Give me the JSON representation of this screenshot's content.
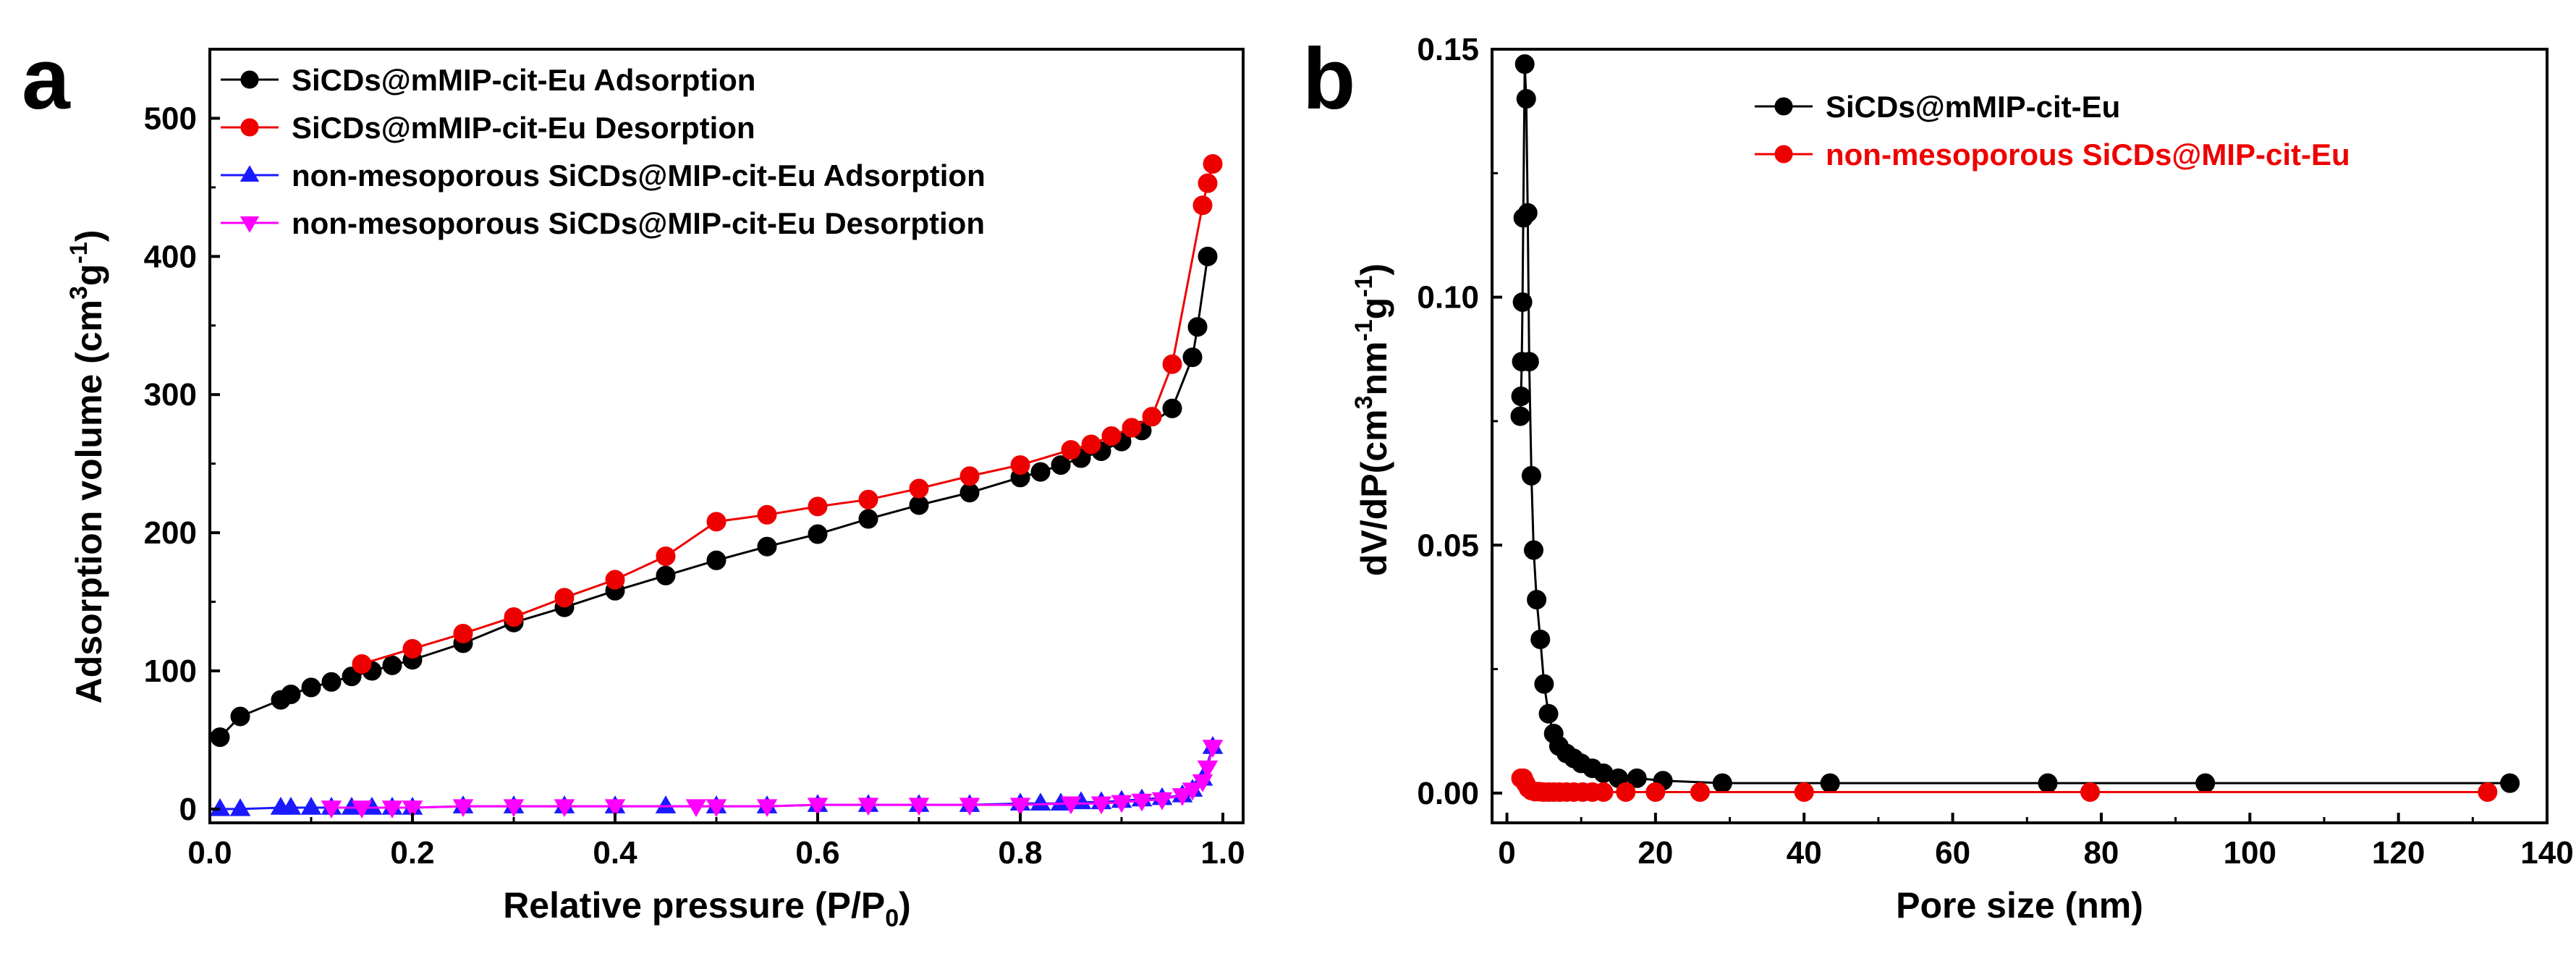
{
  "figure": {
    "background": "#ffffff",
    "axis_color": "#000000"
  },
  "chart_data": [
    {
      "id": "a",
      "type": "line",
      "panel_label": "a",
      "xlabel": "Relative pressure (P/P0)",
      "xlabel_main": "Relative pressure (P/P",
      "xlabel_sub": "0",
      "xlabel_tail": ")",
      "ylabel": "Adsorption volume (cm3g-1)",
      "ylabel_main": "Adsorption volume (cm",
      "ylabel_sup1": "3",
      "ylabel_mid": "g",
      "ylabel_sup2": "-1",
      "ylabel_tail": ")",
      "xlim": [
        0.0,
        1.02
      ],
      "ylim": [
        -10,
        550
      ],
      "xticks": [
        0.0,
        0.2,
        0.4,
        0.6,
        0.8,
        1.0
      ],
      "xtick_labels": [
        "0.0",
        "0.2",
        "0.4",
        "0.6",
        "0.8",
        "1.0"
      ],
      "yticks": [
        0,
        100,
        200,
        300,
        400,
        500
      ],
      "ytick_labels": [
        "0",
        "100",
        "200",
        "300",
        "400",
        "500"
      ],
      "legend_position": "top-left",
      "series": [
        {
          "name": "SiCDs@mMIP-cit-Eu Adsorption",
          "color": "#000000",
          "marker": "circle",
          "x": [
            0.01,
            0.03,
            0.07,
            0.08,
            0.1,
            0.12,
            0.14,
            0.16,
            0.18,
            0.2,
            0.25,
            0.3,
            0.35,
            0.4,
            0.45,
            0.5,
            0.55,
            0.6,
            0.65,
            0.7,
            0.75,
            0.8,
            0.82,
            0.84,
            0.86,
            0.88,
            0.9,
            0.92,
            0.95,
            0.97,
            0.975,
            0.985
          ],
          "y": [
            52,
            67,
            79,
            83,
            88,
            92,
            96,
            100,
            104,
            108,
            120,
            135,
            146,
            158,
            169,
            180,
            190,
            199,
            210,
            220,
            229,
            240,
            244,
            249,
            254,
            259,
            266,
            274,
            290,
            327,
            349,
            400
          ]
        },
        {
          "name": "SiCDs@mMIP-cit-Eu Desorption",
          "color": "#ee0000",
          "marker": "circle",
          "x": [
            0.99,
            0.985,
            0.98,
            0.95,
            0.93,
            0.91,
            0.89,
            0.87,
            0.85,
            0.8,
            0.75,
            0.7,
            0.65,
            0.6,
            0.55,
            0.5,
            0.45,
            0.4,
            0.35,
            0.3,
            0.25,
            0.2,
            0.15
          ],
          "y": [
            467,
            453,
            437,
            322,
            284,
            276,
            270,
            264,
            260,
            249,
            241,
            232,
            224,
            219,
            213,
            208,
            183,
            166,
            153,
            139,
            127,
            116,
            105
          ]
        },
        {
          "name": "non-mesoporous SiCDs@MIP-cit-Eu Adsorption",
          "color": "#1a1aff",
          "marker": "triangle-up",
          "x": [
            0.01,
            0.03,
            0.07,
            0.08,
            0.1,
            0.12,
            0.14,
            0.16,
            0.18,
            0.2,
            0.25,
            0.3,
            0.35,
            0.4,
            0.45,
            0.5,
            0.55,
            0.6,
            0.65,
            0.7,
            0.75,
            0.8,
            0.82,
            0.84,
            0.86,
            0.88,
            0.9,
            0.92,
            0.94,
            0.96,
            0.97,
            0.98,
            0.99
          ],
          "y": [
            0,
            0,
            1,
            1,
            1,
            1,
            1,
            1,
            1,
            1,
            2,
            2,
            2,
            2,
            2,
            2,
            2,
            3,
            3,
            3,
            3,
            4,
            4,
            4,
            5,
            5,
            6,
            7,
            8,
            10,
            14,
            22,
            45
          ]
        },
        {
          "name": "non-mesoporous SiCDs@MIP-cit-Eu Desorption",
          "color": "#ff00ff",
          "marker": "triangle-down",
          "x": [
            0.99,
            0.985,
            0.98,
            0.97,
            0.96,
            0.94,
            0.92,
            0.9,
            0.88,
            0.85,
            0.8,
            0.75,
            0.7,
            0.65,
            0.6,
            0.55,
            0.5,
            0.48,
            0.4,
            0.35,
            0.3,
            0.25,
            0.2,
            0.18,
            0.15,
            0.12
          ],
          "y": [
            45,
            30,
            20,
            14,
            10,
            7,
            6,
            5,
            4,
            4,
            3,
            3,
            3,
            3,
            3,
            2,
            2,
            2,
            2,
            2,
            2,
            2,
            1,
            1,
            1,
            1
          ]
        }
      ]
    },
    {
      "id": "b",
      "type": "line",
      "panel_label": "b",
      "xlabel": "Pore size (nm)",
      "ylabel": "dV/dP(cm3nm-1g-1)",
      "ylabel_main": "dV/dP(cm",
      "ylabel_sup1": "3",
      "ylabel_mid": "nm",
      "ylabel_sup2": "-1",
      "ylabel_mid2": "g",
      "ylabel_sup3": "-1",
      "ylabel_tail": ")",
      "xlim": [
        -2,
        140
      ],
      "ylim": [
        -0.006,
        0.15
      ],
      "xticks": [
        0,
        20,
        40,
        60,
        80,
        100,
        120,
        140
      ],
      "xtick_labels": [
        "0",
        "20",
        "40",
        "60",
        "80",
        "100",
        "120",
        "140"
      ],
      "yticks": [
        0.0,
        0.05,
        0.1,
        0.15
      ],
      "ytick_labels": [
        "0.00",
        "0.05",
        "0.10",
        "0.15"
      ],
      "legend_position": "top-right",
      "series": [
        {
          "name": "SiCDs@mMIP-cit-Eu",
          "color": "#000000",
          "marker": "circle",
          "x": [
            1.8,
            1.9,
            2.0,
            2.1,
            2.2,
            2.4,
            2.6,
            2.8,
            3.0,
            3.3,
            3.6,
            4.0,
            4.5,
            5.0,
            5.6,
            6.3,
            7.0,
            8.0,
            9.0,
            10.0,
            11.5,
            13.0,
            15.0,
            17.5,
            21.0,
            29.0,
            43.5,
            72.8,
            94.0,
            135.0
          ],
          "y": [
            0.076,
            0.08,
            0.087,
            0.099,
            0.116,
            0.147,
            0.14,
            0.117,
            0.087,
            0.064,
            0.049,
            0.039,
            0.031,
            0.022,
            0.016,
            0.012,
            0.0095,
            0.008,
            0.007,
            0.006,
            0.005,
            0.004,
            0.003,
            0.003,
            0.0025,
            0.002,
            0.002,
            0.002,
            0.002,
            0.002
          ]
        },
        {
          "name": "non-mesoporous SiCDs@MIP-cit-Eu",
          "color": "#ee0000",
          "marker": "circle",
          "x": [
            1.9,
            2.2,
            2.5,
            2.9,
            3.3,
            3.8,
            4.3,
            4.9,
            5.6,
            6.3,
            7.1,
            8.0,
            9.0,
            10.2,
            11.5,
            13.0,
            16.0,
            20.0,
            26.0,
            40.0,
            78.5,
            132.0
          ],
          "y": [
            0.003,
            0.003,
            0.002,
            0.001,
            0.0005,
            0.0003,
            0.0003,
            0.0002,
            0.0002,
            0.0002,
            0.0002,
            0.0002,
            0.0002,
            0.0002,
            0.0002,
            0.0002,
            0.0002,
            0.0002,
            0.0002,
            0.0002,
            0.0002,
            0.0002
          ]
        }
      ]
    }
  ]
}
